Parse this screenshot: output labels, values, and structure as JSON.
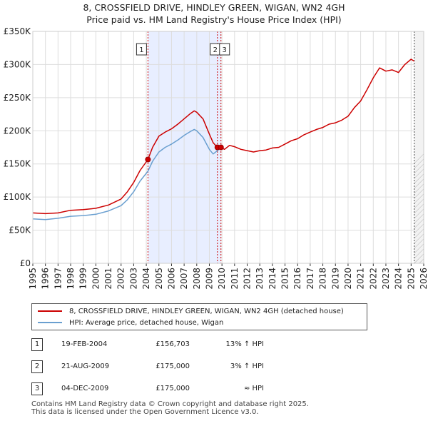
{
  "title_line1": "8, CROSSFIELD DRIVE, HINDLEY GREEN, WIGAN, WN2 4GH",
  "title_line2": "Price paid vs. HM Land Registry's House Price Index (HPI)",
  "legend": {
    "property": "8, CROSSFIELD DRIVE, HINDLEY GREEN, WIGAN, WN2 4GH (detached house)",
    "hpi": "HPI: Average price, detached house, Wigan"
  },
  "colors": {
    "property": "#cc0000",
    "hpi": "#6a9fd0",
    "highlight": "#e8eeff",
    "grid": "#dddddd"
  },
  "transactions": [
    {
      "num": "1",
      "date": "19-FEB-2004",
      "price": "£156,703",
      "hpi": "13% ↑ HPI"
    },
    {
      "num": "2",
      "date": "21-AUG-2009",
      "price": "£175,000",
      "hpi": "3% ↑ HPI"
    },
    {
      "num": "3",
      "date": "04-DEC-2009",
      "price": "£175,000",
      "hpi": "≈ HPI"
    }
  ],
  "footer_line1": "Contains HM Land Registry data © Crown copyright and database right 2025.",
  "footer_line2": "This data is licensed under the Open Government Licence v3.0.",
  "chart_data": {
    "type": "line",
    "xlim": [
      1995,
      2026
    ],
    "ylim": [
      0,
      350000
    ],
    "y_ticks": [
      {
        "value": 0,
        "label": "£0"
      },
      {
        "value": 50000,
        "label": "£50K"
      },
      {
        "value": 100000,
        "label": "£100K"
      },
      {
        "value": 150000,
        "label": "£150K"
      },
      {
        "value": 200000,
        "label": "£200K"
      },
      {
        "value": 250000,
        "label": "£250K"
      },
      {
        "value": 300000,
        "label": "£300K"
      },
      {
        "value": 350000,
        "label": "£350K"
      }
    ],
    "x_ticks": [
      "1995",
      "1996",
      "1997",
      "1998",
      "1999",
      "2000",
      "2001",
      "2002",
      "2003",
      "2004",
      "2005",
      "2006",
      "2007",
      "2008",
      "2009",
      "2010",
      "2011",
      "2012",
      "2013",
      "2014",
      "2015",
      "2016",
      "2017",
      "2018",
      "2019",
      "2020",
      "2021",
      "2022",
      "2023",
      "2024",
      "2025",
      "2026"
    ],
    "markers": [
      {
        "label": "1",
        "x": 2004.13,
        "y": 156703
      },
      {
        "label": "2",
        "x": 2009.64,
        "y": 175000
      },
      {
        "label": "3",
        "x": 2009.92,
        "y": 175000
      }
    ],
    "highlight_range": [
      2004.13,
      2009.92
    ],
    "future_from": 2025.25,
    "series": [
      {
        "name": "8, CROSSFIELD DRIVE, HINDLEY GREEN, WIGAN, WN2 4GH (detached house)",
        "color": "#cc0000",
        "points": [
          [
            1995,
            76000
          ],
          [
            1996,
            75000
          ],
          [
            1997,
            76000
          ],
          [
            1998,
            80000
          ],
          [
            1999,
            81000
          ],
          [
            2000,
            83000
          ],
          [
            2001,
            88000
          ],
          [
            2002,
            97000
          ],
          [
            2002.5,
            108000
          ],
          [
            2003,
            122000
          ],
          [
            2003.5,
            140000
          ],
          [
            2004.13,
            156703
          ],
          [
            2004.5,
            175000
          ],
          [
            2005,
            192000
          ],
          [
            2005.5,
            198000
          ],
          [
            2006,
            203000
          ],
          [
            2006.5,
            210000
          ],
          [
            2007,
            218000
          ],
          [
            2007.5,
            226000
          ],
          [
            2007.8,
            230000
          ],
          [
            2008,
            228000
          ],
          [
            2008.5,
            218000
          ],
          [
            2009,
            195000
          ],
          [
            2009.3,
            182000
          ],
          [
            2009.64,
            175000
          ],
          [
            2009.92,
            175000
          ],
          [
            2010.2,
            172000
          ],
          [
            2010.6,
            178000
          ],
          [
            2011,
            176000
          ],
          [
            2011.5,
            172000
          ],
          [
            2012,
            170000
          ],
          [
            2012.5,
            168000
          ],
          [
            2013,
            170000
          ],
          [
            2013.5,
            171000
          ],
          [
            2014,
            174000
          ],
          [
            2014.5,
            175000
          ],
          [
            2015,
            180000
          ],
          [
            2015.5,
            185000
          ],
          [
            2016,
            188000
          ],
          [
            2016.5,
            194000
          ],
          [
            2017,
            198000
          ],
          [
            2017.5,
            202000
          ],
          [
            2018,
            205000
          ],
          [
            2018.5,
            210000
          ],
          [
            2019,
            212000
          ],
          [
            2019.5,
            216000
          ],
          [
            2020,
            222000
          ],
          [
            2020.5,
            235000
          ],
          [
            2021,
            245000
          ],
          [
            2021.5,
            262000
          ],
          [
            2022,
            280000
          ],
          [
            2022.5,
            295000
          ],
          [
            2023,
            290000
          ],
          [
            2023.5,
            292000
          ],
          [
            2024,
            288000
          ],
          [
            2024.5,
            300000
          ],
          [
            2025,
            308000
          ],
          [
            2025.25,
            305000
          ]
        ]
      },
      {
        "name": "HPI: Average price, detached house, Wigan",
        "color": "#6a9fd0",
        "points": [
          [
            1995,
            67000
          ],
          [
            1996,
            66000
          ],
          [
            1997,
            68000
          ],
          [
            1998,
            71000
          ],
          [
            1999,
            72000
          ],
          [
            2000,
            74000
          ],
          [
            2001,
            79000
          ],
          [
            2002,
            87000
          ],
          [
            2002.5,
            96000
          ],
          [
            2003,
            108000
          ],
          [
            2003.5,
            124000
          ],
          [
            2004.13,
            139000
          ],
          [
            2004.5,
            154000
          ],
          [
            2005,
            168000
          ],
          [
            2005.5,
            175000
          ],
          [
            2006,
            180000
          ],
          [
            2006.5,
            186000
          ],
          [
            2007,
            193000
          ],
          [
            2007.5,
            199000
          ],
          [
            2007.8,
            202000
          ],
          [
            2008,
            200000
          ],
          [
            2008.5,
            190000
          ],
          [
            2009,
            172000
          ],
          [
            2009.3,
            165000
          ],
          [
            2009.64,
            170000
          ],
          [
            2009.92,
            175000
          ]
        ]
      }
    ]
  }
}
